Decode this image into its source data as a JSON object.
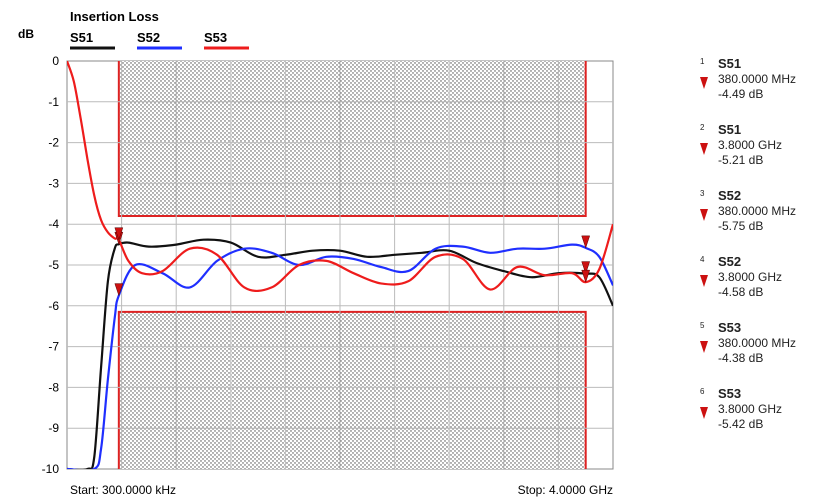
{
  "chart_data": {
    "type": "line",
    "title": "Insertion Loss",
    "ylabel": "dB",
    "xlabel": "",
    "ylim": [
      -10,
      0
    ],
    "y_ticks": [
      "0",
      "-1",
      "-2",
      "-3",
      "-4",
      "-5",
      "-6",
      "-7",
      "-8",
      "-9",
      "-10"
    ],
    "x_range_ghz": [
      0.0003,
      4.0
    ],
    "start_label": "Start: 300.0000 kHz",
    "stop_label": "Stop: 4.0000 GHz",
    "grid": true,
    "legend_position": "top-left",
    "colors": {
      "S51": "#111111",
      "S52": "#1f2fff",
      "S53": "#ee1c1c",
      "mask": "#dd2222"
    },
    "limit_mask": {
      "x_range_ghz": [
        0.38,
        3.8
      ],
      "upper_y_db": -3.8,
      "lower_y_db": -6.15
    },
    "series": [
      {
        "name": "S51",
        "x": [
          0.0003,
          0.15,
          0.2,
          0.25,
          0.3,
          0.35,
          0.38,
          0.45,
          0.6,
          0.8,
          1.0,
          1.2,
          1.4,
          1.6,
          1.8,
          2.0,
          2.2,
          2.4,
          2.6,
          2.8,
          3.0,
          3.2,
          3.4,
          3.6,
          3.8,
          3.9,
          4.0
        ],
        "y": [
          -10,
          -10,
          -9.7,
          -7.5,
          -5.4,
          -4.6,
          -4.49,
          -4.45,
          -4.55,
          -4.5,
          -4.38,
          -4.45,
          -4.8,
          -4.75,
          -4.65,
          -4.65,
          -4.8,
          -4.75,
          -4.7,
          -4.65,
          -4.95,
          -5.15,
          -5.3,
          -5.2,
          -5.21,
          -5.3,
          -6.0
        ]
      },
      {
        "name": "S52",
        "x": [
          0.0003,
          0.2,
          0.25,
          0.3,
          0.35,
          0.38,
          0.5,
          0.7,
          0.9,
          1.1,
          1.3,
          1.5,
          1.7,
          1.9,
          2.1,
          2.3,
          2.5,
          2.7,
          2.9,
          3.1,
          3.3,
          3.5,
          3.7,
          3.8,
          3.9,
          4.0
        ],
        "y": [
          -10,
          -10,
          -9.5,
          -7.8,
          -6.3,
          -5.75,
          -5.0,
          -5.2,
          -5.55,
          -4.9,
          -4.6,
          -4.7,
          -5.0,
          -4.8,
          -4.85,
          -5.05,
          -5.15,
          -4.6,
          -4.55,
          -4.7,
          -4.6,
          -4.6,
          -4.5,
          -4.58,
          -4.8,
          -5.5
        ]
      },
      {
        "name": "S53",
        "x": [
          0.0003,
          0.05,
          0.1,
          0.15,
          0.2,
          0.25,
          0.3,
          0.35,
          0.38,
          0.45,
          0.55,
          0.7,
          0.9,
          1.1,
          1.3,
          1.5,
          1.7,
          1.9,
          2.1,
          2.3,
          2.5,
          2.7,
          2.9,
          3.1,
          3.3,
          3.5,
          3.7,
          3.8,
          3.9,
          4.0
        ],
        "y": [
          0,
          -0.5,
          -1.4,
          -2.4,
          -3.3,
          -3.9,
          -4.2,
          -4.35,
          -4.38,
          -4.9,
          -5.2,
          -5.15,
          -4.6,
          -4.75,
          -5.55,
          -5.55,
          -5.0,
          -4.9,
          -5.2,
          -5.45,
          -5.4,
          -4.8,
          -4.85,
          -5.6,
          -5.05,
          -5.25,
          -5.2,
          -5.42,
          -5.1,
          -4.0
        ]
      }
    ],
    "markers": [
      {
        "index": "1",
        "trace": "S51",
        "freq": "380.0000 MHz",
        "value": "-4.49 dB",
        "x": 0.38,
        "y": -4.49
      },
      {
        "index": "2",
        "trace": "S51",
        "freq": "3.8000 GHz",
        "value": "-5.21 dB",
        "x": 3.8,
        "y": -5.21
      },
      {
        "index": "3",
        "trace": "S52",
        "freq": "380.0000 MHz",
        "value": "-5.75 dB",
        "x": 0.38,
        "y": -5.75
      },
      {
        "index": "4",
        "trace": "S52",
        "freq": "3.8000 GHz",
        "value": "-4.58 dB",
        "x": 3.8,
        "y": -4.58
      },
      {
        "index": "5",
        "trace": "S53",
        "freq": "380.0000 MHz",
        "value": "-4.38 dB",
        "x": 0.38,
        "y": -4.38
      },
      {
        "index": "6",
        "trace": "S53",
        "freq": "3.8000 GHz",
        "value": "-5.42 dB",
        "x": 3.8,
        "y": -5.42
      }
    ]
  }
}
